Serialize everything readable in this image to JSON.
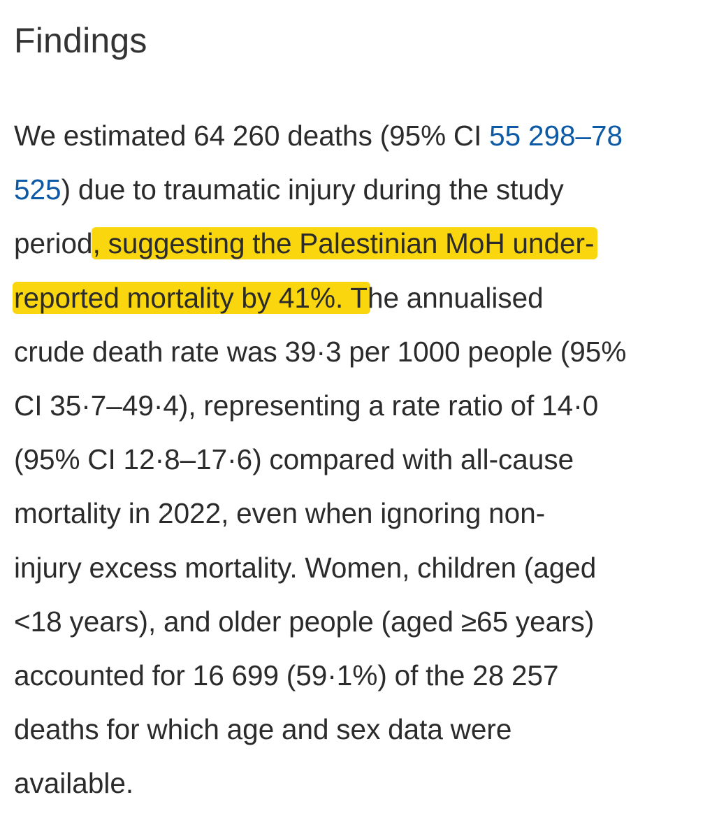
{
  "section": {
    "heading": "Findings"
  },
  "findings": {
    "l1_pre": "We estimated 64 260 deaths (95% CI ",
    "l1_link": "55 298–78",
    "l2_link": "525",
    "l2_post": ") due to traumatic injury during the study",
    "l3_pre": "period",
    "l3_highlight": ", suggesting the Palestinian MoH under-",
    "l4_highlight": "reported mortality by 41%. T",
    "l4_post": "he annualised",
    "l5": "crude death rate was 39·3 per 1000 people (95%",
    "l6": "CI 35·7–49·4), representing a rate ratio of 14·0",
    "l7": "(95% CI 12·8–17·6) compared with all-cause",
    "l8": "mortality in 2022, even when ignoring non-",
    "l9": "injury excess mortality. Women, children (aged",
    "l10": "<18 years), and older people (aged ≥65 years)",
    "l11": "accounted for 16 699 (59·1%) of the 28 257",
    "l12": "deaths for which age and sex data were",
    "l13": "available."
  },
  "colors": {
    "text": "#2b2b2b",
    "link": "#0c5aa6",
    "highlight": "#f9d60e",
    "background": "#ffffff"
  }
}
